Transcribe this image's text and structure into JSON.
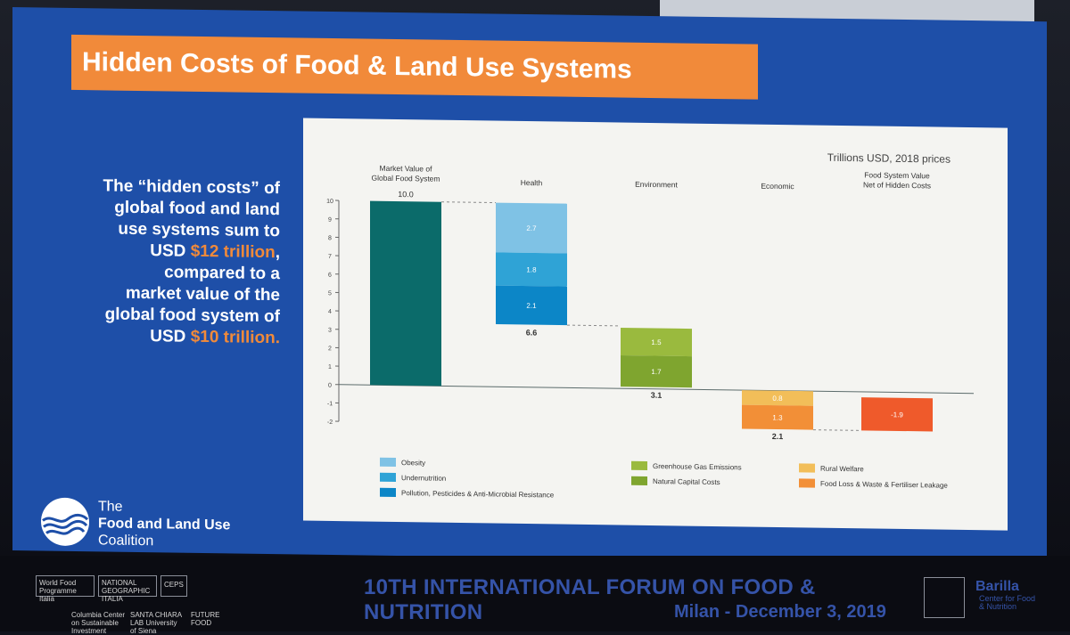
{
  "slide": {
    "title": "Hidden Costs of Food & Land Use Systems",
    "text_lines": [
      {
        "parts": [
          {
            "t": "The “hidden costs” of"
          }
        ]
      },
      {
        "parts": [
          {
            "t": "global food and land"
          }
        ]
      },
      {
        "parts": [
          {
            "t": "use systems sum to"
          }
        ]
      },
      {
        "parts": [
          {
            "t": "USD "
          },
          {
            "t": "$12 trillion",
            "hl": true
          },
          {
            "t": ","
          }
        ]
      },
      {
        "parts": [
          {
            "t": "compared to a"
          }
        ]
      },
      {
        "parts": [
          {
            "t": "market value of the"
          }
        ]
      },
      {
        "parts": [
          {
            "t": "global food system of"
          }
        ]
      },
      {
        "parts": [
          {
            "t": "USD "
          },
          {
            "t": "$10 trillion.",
            "hl": true
          }
        ]
      }
    ],
    "logo": {
      "line1": "The",
      "line2": "Food and Land Use",
      "line3": "Coalition"
    }
  },
  "colors": {
    "screen_blue": "#1e4fa8",
    "title_orange": "#f18a3a",
    "market": "#0b6b6a",
    "obesity": "#7fc2e5",
    "undernutrition": "#2fa3d6",
    "pollution": "#0c86c7",
    "ghg": "#9aba3e",
    "natural_capital": "#7fa52f",
    "rural_welfare": "#f2be59",
    "food_loss": "#f28f37",
    "net": "#ef5a2b"
  },
  "chart_data": {
    "type": "bar",
    "subtitle": "Trillions USD, 2018 prices",
    "categories": [
      "Market Value of\nGlobal Food System",
      "Health",
      "Environment",
      "Economic",
      "Food System Value\nNet of Hidden Costs"
    ],
    "ylim": [
      -2,
      10
    ],
    "yticks": [
      10,
      9,
      8,
      7,
      6,
      5,
      4,
      3,
      2,
      1,
      0,
      -1,
      -2
    ],
    "bars": [
      {
        "category": 0,
        "from": 0,
        "to": 10.0,
        "color_key": "market",
        "label": "",
        "top_label": "10.0"
      },
      {
        "category": 1,
        "from": 10.0,
        "to": 7.3,
        "color_key": "obesity",
        "label": "2.7"
      },
      {
        "category": 1,
        "from": 7.3,
        "to": 5.5,
        "color_key": "undernutrition",
        "label": "1.8"
      },
      {
        "category": 1,
        "from": 5.5,
        "to": 3.4,
        "color_key": "pollution",
        "label": "2.1"
      },
      {
        "category": 2,
        "from": 3.3,
        "to": 1.8,
        "color_key": "ghg",
        "label": "1.5"
      },
      {
        "category": 2,
        "from": 1.8,
        "to": 0.1,
        "color_key": "natural_capital",
        "label": "1.7"
      },
      {
        "category": 3,
        "from": 0.0,
        "to": -0.8,
        "color_key": "rural_welfare",
        "label": "0.8"
      },
      {
        "category": 3,
        "from": -0.8,
        "to": -2.1,
        "color_key": "food_loss",
        "label": "1.3"
      },
      {
        "category": 4,
        "from": -0.3,
        "to": -2.1,
        "color_key": "net",
        "label": "-1.9"
      }
    ],
    "subtotals": [
      {
        "category": 1,
        "value": "6.6"
      },
      {
        "category": 2,
        "value": "3.1"
      },
      {
        "category": 3,
        "value": "2.1"
      }
    ],
    "legend": [
      {
        "label": "Obesity",
        "color_key": "obesity"
      },
      {
        "label": "Undernutrition",
        "color_key": "undernutrition"
      },
      {
        "label": "Pollution, Pesticides & Anti-Microbial Resistance",
        "color_key": "pollution"
      },
      {
        "label": "Greenhouse Gas Emissions",
        "color_key": "ghg"
      },
      {
        "label": "Natural Capital Costs",
        "color_key": "natural_capital"
      },
      {
        "label": "Rural Welfare",
        "color_key": "rural_welfare"
      },
      {
        "label": "Food Loss & Waste & Fertiliser Leakage",
        "color_key": "food_loss"
      }
    ],
    "grid": false,
    "legend_placement": "bottom"
  },
  "banner": {
    "forum_title": "10TH INTERNATIONAL FORUM ON FOOD & NUTRITION",
    "forum_date": "Milan - December 3, 2019",
    "sponsors": [
      "World Food Programme Italia",
      "NATIONAL GEOGRAPHIC ITALIA",
      "CEPS",
      "Columbia Center on Sustainable Investment",
      "SANTA CHIARA LAB University of Siena",
      "FUTURE FOOD"
    ],
    "barilla_name": "Barilla",
    "barilla_sub": "Center for Food & Nutrition"
  }
}
